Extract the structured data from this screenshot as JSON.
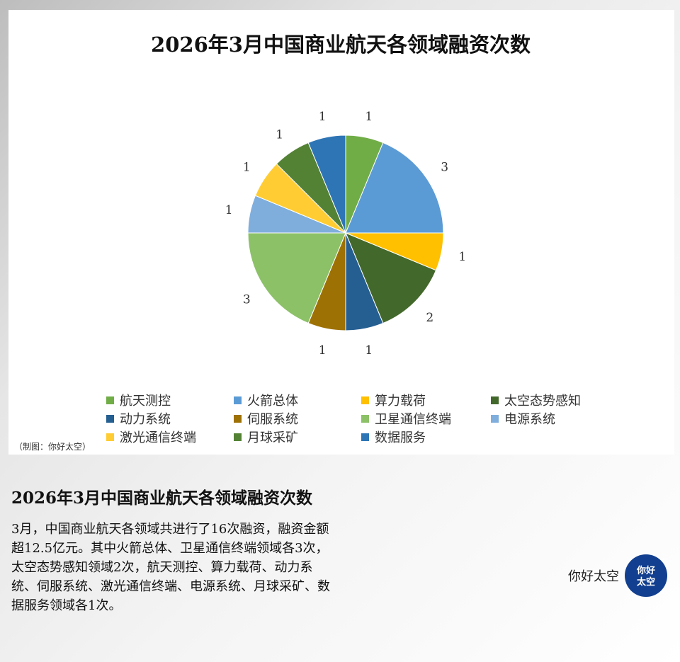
{
  "chart_data": {
    "type": "pie",
    "title": "2026年3月中国商业航天各领域融资次数",
    "categories": [
      "航天测控",
      "火箭总体",
      "算力载荷",
      "太空态势感知",
      "动力系统",
      "伺服系统",
      "卫星通信终端",
      "电源系统",
      "激光通信终端",
      "月球采矿",
      "数据服务"
    ],
    "values": [
      1,
      3,
      1,
      2,
      1,
      1,
      3,
      1,
      1,
      1,
      1
    ],
    "colors": [
      "#70ad47",
      "#5b9bd5",
      "#ffc000",
      "#43682b",
      "#255e91",
      "#9e7104",
      "#8cc168",
      "#7faedd",
      "#ffcd33",
      "#548235",
      "#2e75b6"
    ],
    "legend_position": "bottom",
    "data_labels": true
  },
  "credit": "（制图：你好太空）",
  "caption": {
    "title": "2026年3月中国商业航天各领域融资次数",
    "body": "3月，中国商业航天各领域共进行了16次融资，融资金额超12.5亿元。其中火箭总体、卫星通信终端领域各3次，太空态势感知领域2次，航天测控、算力载荷、动力系统、伺服系统、激光通信终端、电源系统、月球采矿、数据服务领域各1次。"
  },
  "brand": {
    "name": "你好太空",
    "logo_text": "你好太空",
    "logo_color": "#123f8f"
  }
}
